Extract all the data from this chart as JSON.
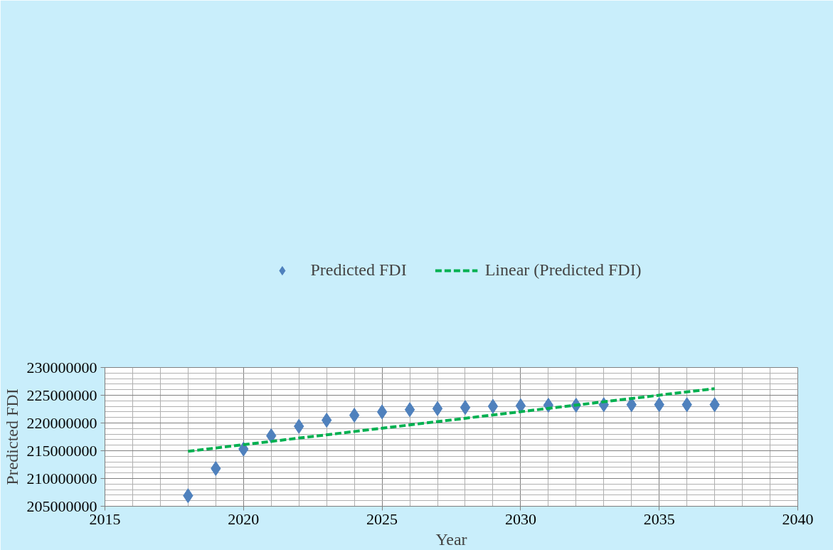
{
  "chart_data": {
    "type": "scatter",
    "xlabel": "Year",
    "ylabel": "Predicted FDI",
    "series": [
      {
        "name": "Predicted FDI",
        "marker": "diamond",
        "color": "#4f81bd",
        "x": [
          2018,
          2019,
          2020,
          2021,
          2022,
          2023,
          2024,
          2025,
          2026,
          2027,
          2028,
          2029,
          2030,
          2031,
          2032,
          2033,
          2034,
          2035,
          2036,
          2037
        ],
        "values": [
          206900000,
          211800000,
          215300000,
          217700000,
          219400000,
          220500000,
          221400000,
          222000000,
          222400000,
          222600000,
          222800000,
          223000000,
          223100000,
          223200000,
          223200000,
          223300000,
          223300000,
          223300000,
          223300000,
          223300000
        ]
      },
      {
        "name": "Linear (Predicted FDI)",
        "type": "line",
        "line_style": "dashed",
        "marker": "none",
        "color": "#00b050",
        "x": [
          2018,
          2037
        ],
        "values": [
          214900000,
          226200000
        ]
      }
    ],
    "xlim": [
      2015,
      2040
    ],
    "xticks": [
      2015,
      2020,
      2025,
      2030,
      2035,
      2040
    ],
    "ylim": [
      205000000,
      230000000
    ],
    "yticks": [
      205000000,
      210000000,
      215000000,
      220000000,
      225000000,
      230000000
    ],
    "grid": true,
    "legend": "top"
  }
}
